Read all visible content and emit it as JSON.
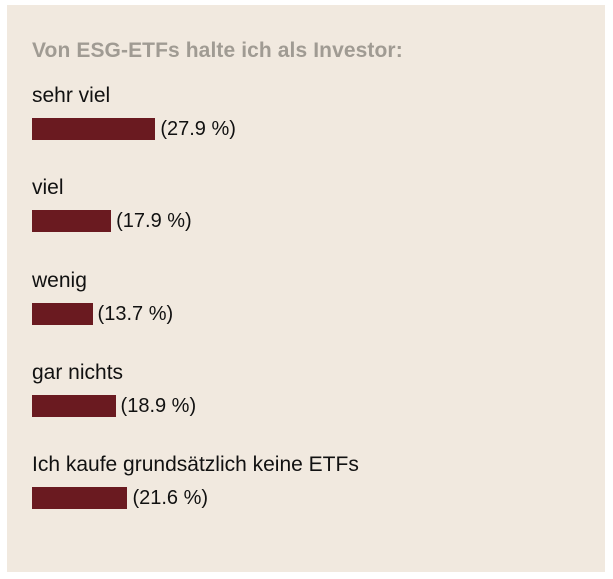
{
  "chart_data": {
    "type": "bar",
    "title": "Von ESG-ETFs halte ich als Investor:",
    "categories": [
      "sehr viel",
      "viel",
      "wenig",
      "gar nichts",
      "Ich kaufe grundsätzlich keine ETFs"
    ],
    "values": [
      27.9,
      17.9,
      13.7,
      18.9,
      21.6
    ],
    "value_labels": [
      "(27.9 %)",
      "(17.9 %)",
      "(13.7 %)",
      "(18.9 %)",
      "(21.6 %)"
    ],
    "orientation": "horizontal",
    "unit": "%",
    "bar_color": "#6a1a20",
    "background_color": "#f1e9df",
    "grid": false
  }
}
